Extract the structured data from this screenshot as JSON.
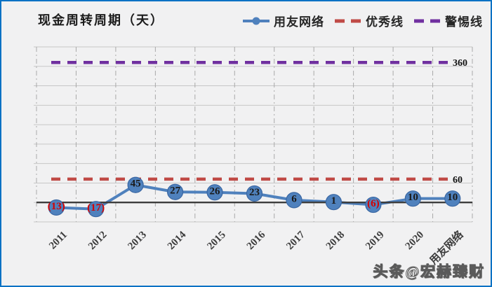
{
  "header": {
    "title": "现金周转周期（天）"
  },
  "legend": [
    {
      "label": "用友网络",
      "type": "line-marker",
      "color": "#4f81bd"
    },
    {
      "label": "优秀线",
      "type": "dashed",
      "color": "#c04a46"
    },
    {
      "label": "警惕线",
      "type": "dashed",
      "color": "#7030a0"
    }
  ],
  "chart_data": {
    "type": "line",
    "title": "现金周转周期（天）",
    "categories": [
      "2011",
      "2012",
      "2013",
      "2014",
      "2015",
      "2016",
      "2017",
      "2018",
      "2019",
      "2020",
      "用友网络"
    ],
    "series": [
      {
        "name": "用友网络",
        "values": [
          -13,
          -17,
          45,
          27,
          26,
          23,
          6,
          1,
          -6,
          10,
          10
        ]
      }
    ],
    "reference_lines": [
      {
        "name": "优秀线",
        "value": 60,
        "label": "60",
        "color": "#c04a46"
      },
      {
        "name": "警惕线",
        "value": 360,
        "label": "360",
        "color": "#7030a0"
      }
    ],
    "ylim": [
      -50,
      400
    ],
    "grid_step": 50,
    "grid": "on",
    "legend_position": "top-right",
    "negative_label_format": "parentheses-red"
  },
  "watermark": "头条@宏赫臻财",
  "colors": {
    "series": "#4f81bd",
    "series_stroke": "#3a67a3",
    "excellent_line": "#c04a46",
    "warning_line": "#7030a0",
    "zero_line": "#3d3d3d",
    "grid_horizontal": "#c7c7c7",
    "grid_vertical": "#a9a9a9",
    "data_label": "#1a1a1a",
    "negative_label": "#d40000",
    "tick_label": "#3d3d3d",
    "reference_label": "#111111",
    "frame_border": "#0a72c4",
    "background": "#f1f1f2"
  }
}
